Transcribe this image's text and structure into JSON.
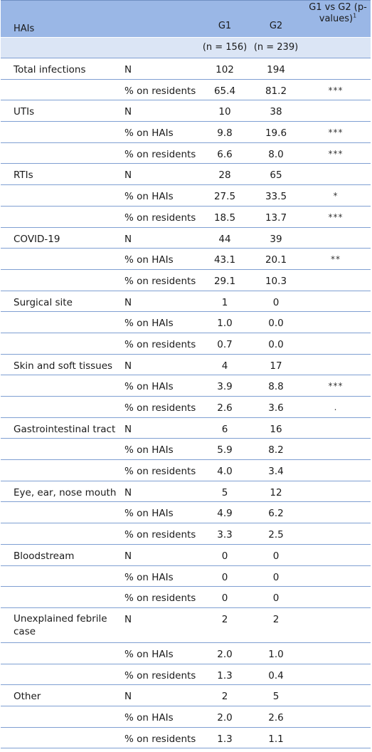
{
  "header": {
    "col_hais": "HAIs",
    "col_g1": "G1",
    "col_g2": "G2",
    "col_p": "G1 vs G2 (p-values)",
    "col_p_footnote": "1"
  },
  "subheader": {
    "g1_n": "(n = 156)",
    "g2_n": "(n = 239)"
  },
  "rows": [
    {
      "name": "Total infections",
      "measure": "N",
      "g1": "102",
      "g2": "194",
      "p": ""
    },
    {
      "name": "",
      "measure": "% on residents",
      "g1": "65.4",
      "g2": "81.2",
      "p": "***"
    },
    {
      "name": "UTIs",
      "measure": "N",
      "g1": "10",
      "g2": "38",
      "p": ""
    },
    {
      "name": "",
      "measure": "% on HAIs",
      "g1": "9.8",
      "g2": "19.6",
      "p": "***"
    },
    {
      "name": "",
      "measure": "% on residents",
      "g1": "6.6",
      "g2": "8.0",
      "p": "***"
    },
    {
      "name": "RTIs",
      "measure": "N",
      "g1": "28",
      "g2": "65",
      "p": ""
    },
    {
      "name": "",
      "measure": "% on HAIs",
      "g1": "27.5",
      "g2": "33.5",
      "p": "*"
    },
    {
      "name": "",
      "measure": "% on residents",
      "g1": "18.5",
      "g2": "13.7",
      "p": "***"
    },
    {
      "name": "COVID-19",
      "measure": "N",
      "g1": "44",
      "g2": "39",
      "p": ""
    },
    {
      "name": "",
      "measure": "% on HAIs",
      "g1": "43.1",
      "g2": "20.1",
      "p": "**"
    },
    {
      "name": "",
      "measure": "% on residents",
      "g1": "29.1",
      "g2": "10.3",
      "p": ""
    },
    {
      "name": "Surgical site",
      "measure": "N",
      "g1": "1",
      "g2": "0",
      "p": ""
    },
    {
      "name": "",
      "measure": "% on HAIs",
      "g1": "1.0",
      "g2": "0.0",
      "p": ""
    },
    {
      "name": "",
      "measure": "% on residents",
      "g1": "0.7",
      "g2": "0.0",
      "p": ""
    },
    {
      "name": "Skin and soft tissues",
      "measure": "N",
      "g1": "4",
      "g2": "17",
      "p": ""
    },
    {
      "name": "",
      "measure": "% on HAIs",
      "g1": "3.9",
      "g2": "8.8",
      "p": "***"
    },
    {
      "name": "",
      "measure": "% on residents",
      "g1": "2.6",
      "g2": "3.6",
      "p": "."
    },
    {
      "name": "Gastrointestinal tract",
      "measure": "N",
      "g1": "6",
      "g2": "16",
      "p": ""
    },
    {
      "name": "",
      "measure": "% on HAIs",
      "g1": "5.9",
      "g2": "8.2",
      "p": ""
    },
    {
      "name": "",
      "measure": "% on residents",
      "g1": "4.0",
      "g2": "3.4",
      "p": ""
    },
    {
      "name": "Eye, ear, nose mouth",
      "measure": "N",
      "g1": "5",
      "g2": "12",
      "p": ""
    },
    {
      "name": "",
      "measure": "% on HAIs",
      "g1": "4.9",
      "g2": "6.2",
      "p": ""
    },
    {
      "name": "",
      "measure": "% on residents",
      "g1": "3.3",
      "g2": "2.5",
      "p": ""
    },
    {
      "name": "Bloodstream",
      "measure": "N",
      "g1": "0",
      "g2": "0",
      "p": ""
    },
    {
      "name": "",
      "measure": "% on HAIs",
      "g1": "0",
      "g2": "0",
      "p": ""
    },
    {
      "name": "",
      "measure": "% on residents",
      "g1": "0",
      "g2": "0",
      "p": ""
    },
    {
      "name": "Unexplained febrile case",
      "measure": "N",
      "g1": "2",
      "g2": "2",
      "p": "",
      "tall": true
    },
    {
      "name": "",
      "measure": "% on HAIs",
      "g1": "2.0",
      "g2": "1.0",
      "p": ""
    },
    {
      "name": "",
      "measure": "% on residents",
      "g1": "1.3",
      "g2": "0.4",
      "p": ""
    },
    {
      "name": "Other",
      "measure": "N",
      "g1": "2",
      "g2": "5",
      "p": ""
    },
    {
      "name": "",
      "measure": "% on HAIs",
      "g1": "2.0",
      "g2": "2.6",
      "p": ""
    },
    {
      "name": "",
      "measure": "% on residents",
      "g1": "1.3",
      "g2": "1.1",
      "p": ""
    }
  ]
}
